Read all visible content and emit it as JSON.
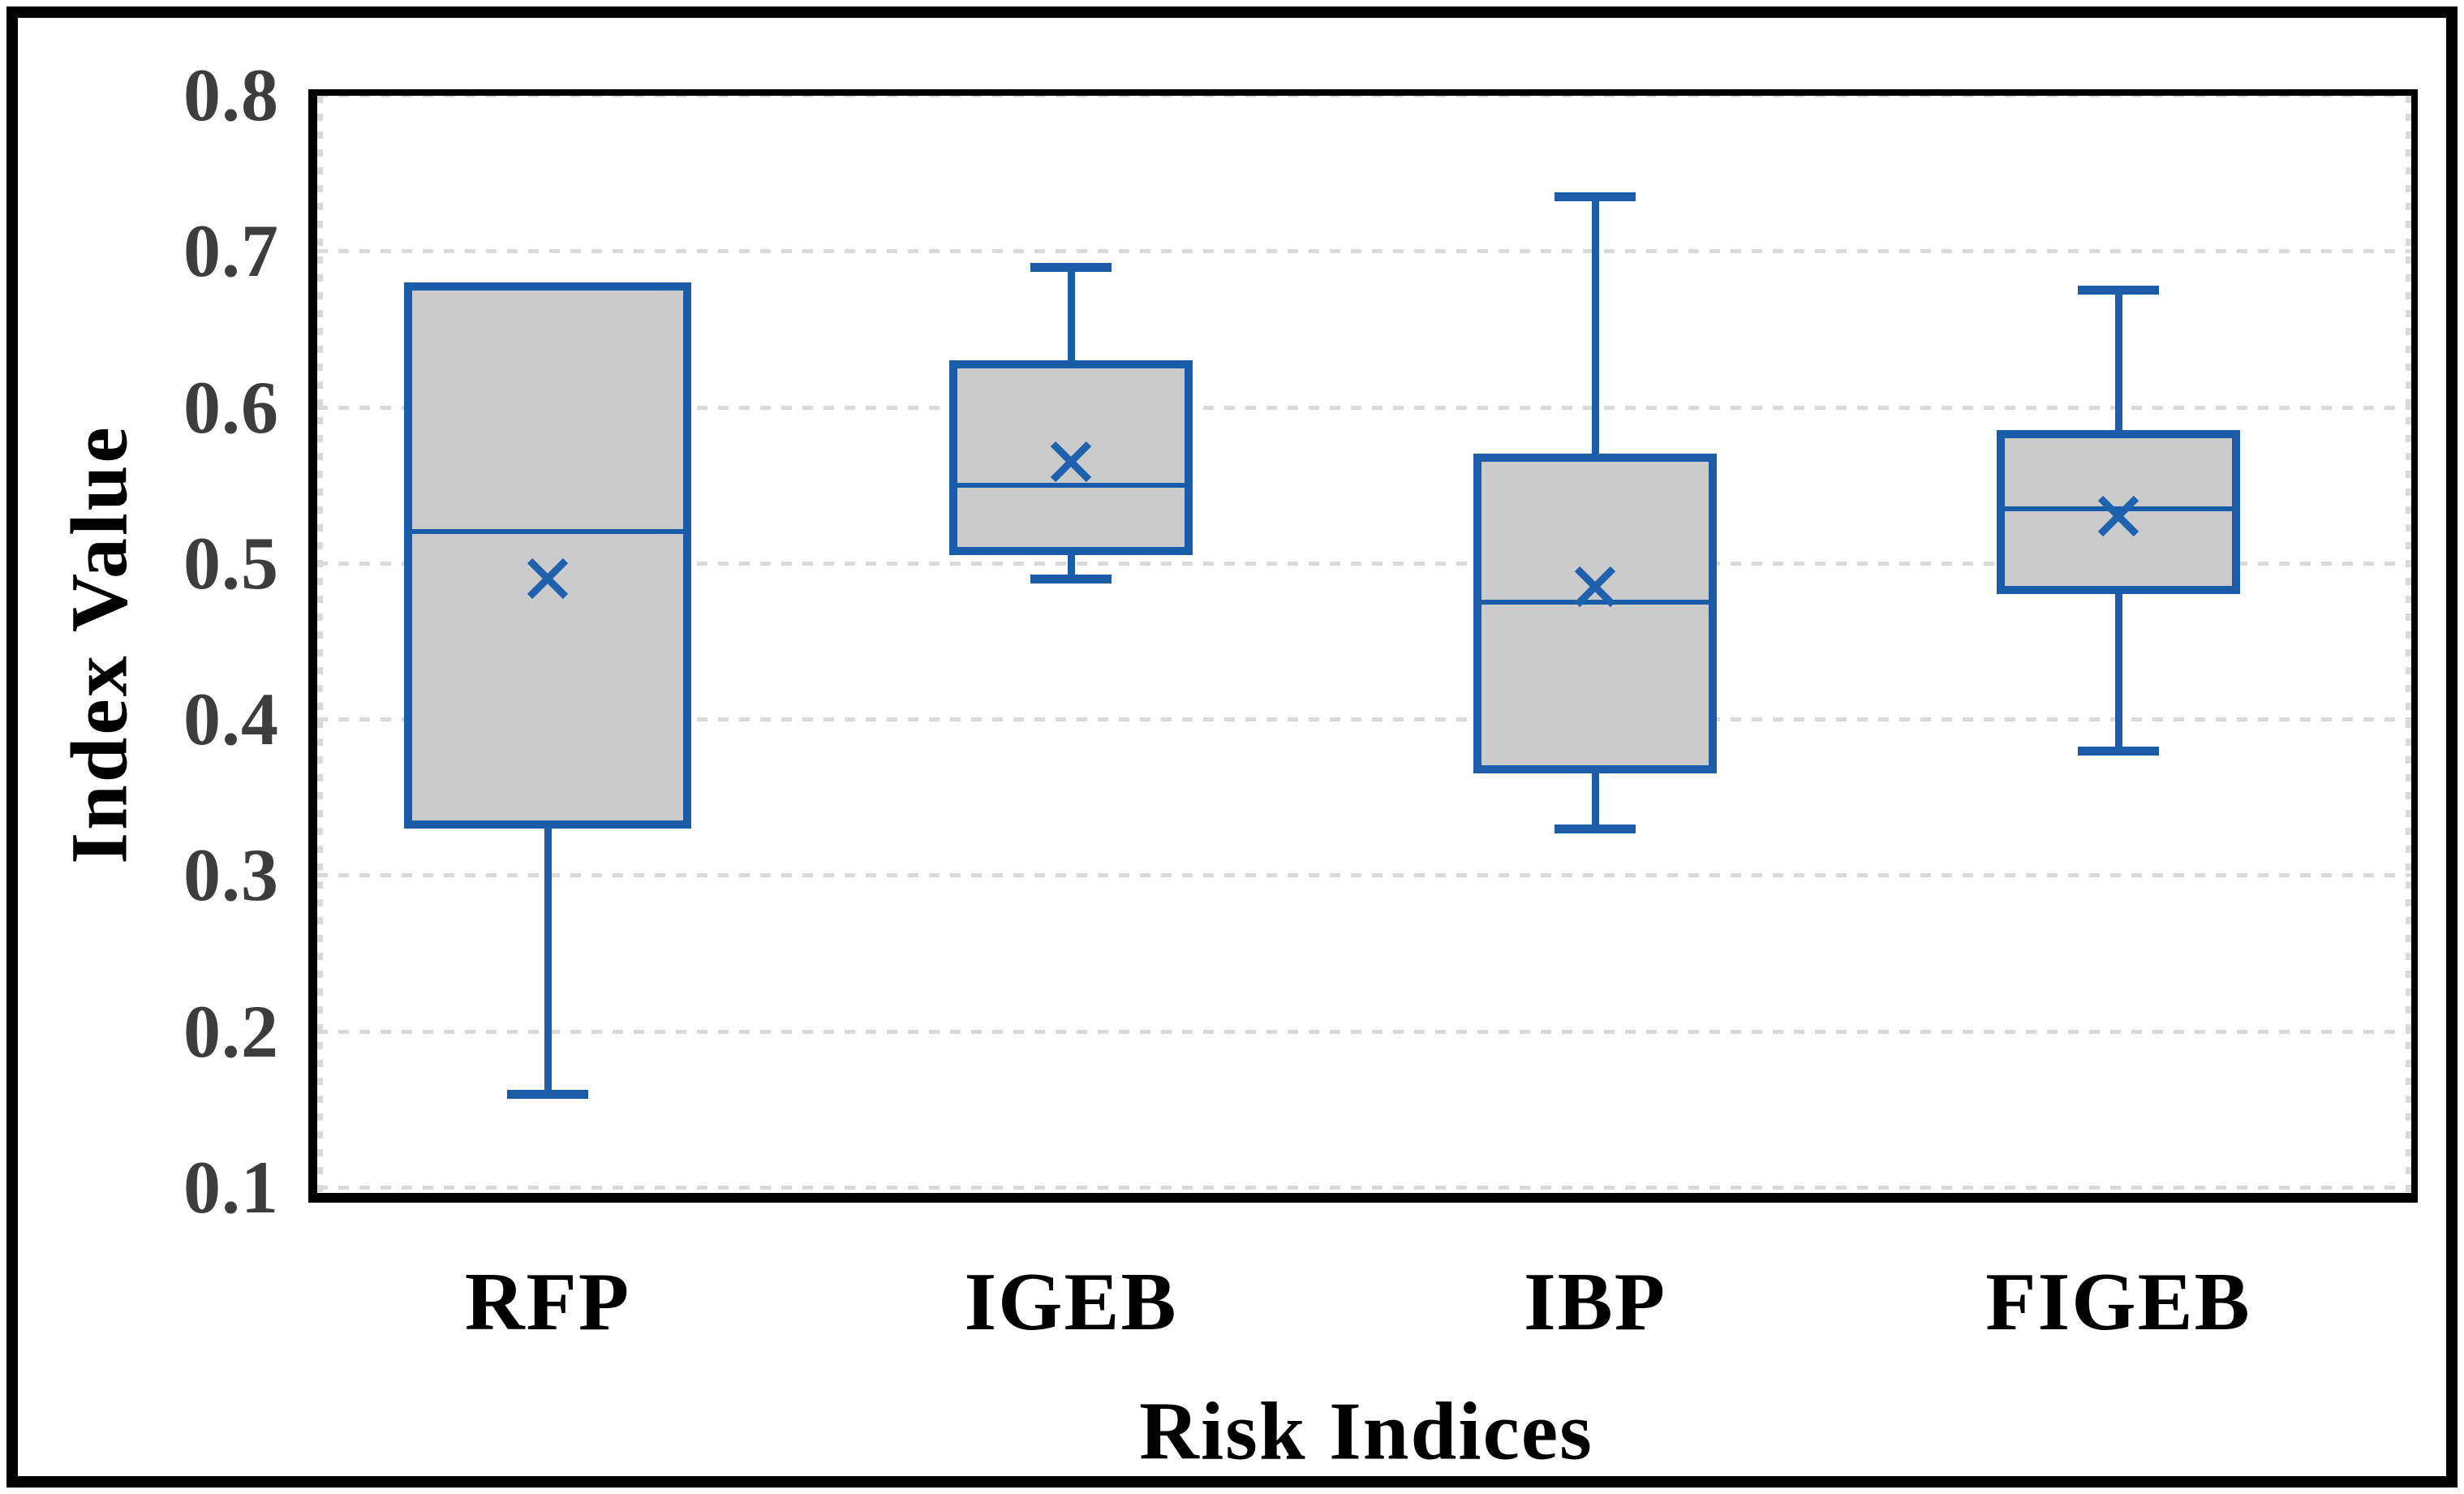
{
  "chart_data": {
    "type": "box",
    "title": "",
    "xlabel": "Risk Indices",
    "ylabel": "Index Value",
    "ylim": [
      0.1,
      0.8
    ],
    "ytick_step": 0.1,
    "yticks": [
      "0.8",
      "0.7",
      "0.6",
      "0.5",
      "0.4",
      "0.3",
      "0.2",
      "0.1"
    ],
    "grid": "horizontal-dashed",
    "legend": "none",
    "categories": [
      "RFP",
      "IGEB",
      "IBP",
      "FIGEB"
    ],
    "series": [
      {
        "name": "RFP",
        "min": 0.16,
        "q1": 0.33,
        "median": 0.52,
        "q3": 0.68,
        "max": 0.68,
        "mean": 0.49
      },
      {
        "name": "IGEB",
        "min": 0.49,
        "q1": 0.505,
        "median": 0.55,
        "q3": 0.63,
        "max": 0.69,
        "mean": 0.565
      },
      {
        "name": "IBP",
        "min": 0.33,
        "q1": 0.365,
        "median": 0.475,
        "q3": 0.57,
        "max": 0.735,
        "mean": 0.485
      },
      {
        "name": "FIGEB",
        "min": 0.38,
        "q1": 0.48,
        "median": 0.535,
        "q3": 0.585,
        "max": 0.675,
        "mean": 0.53
      }
    ],
    "colors": {
      "box_border": "#1a5ca7",
      "box_fill": "#cbcbcb",
      "mean_marker": "#2061ae",
      "gridline": "#d9d9d9",
      "axis": "#000000",
      "tick_label": "#3d3d3d",
      "title_text": "#000000"
    }
  }
}
